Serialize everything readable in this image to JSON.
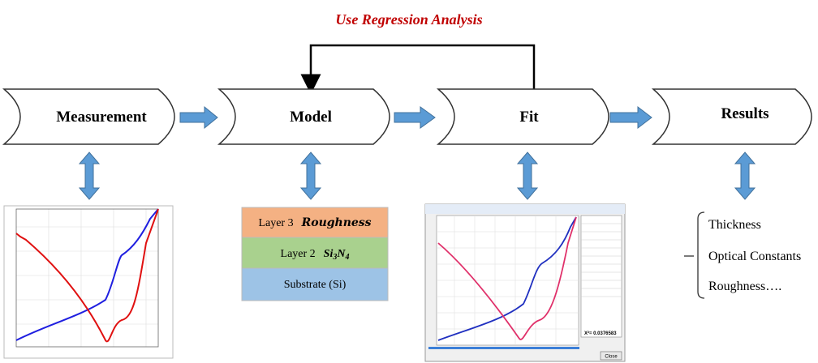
{
  "title": "Use Regression Analysis",
  "nodes": [
    {
      "label": "Measurement"
    },
    {
      "label": "Model"
    },
    {
      "label": "Fit"
    },
    {
      "label": "Results"
    }
  ],
  "layers": [
    {
      "label": "Layer 3",
      "material": "Roughness"
    },
    {
      "label": "Layer 2",
      "formula": [
        "Si",
        "3",
        "N",
        "4"
      ]
    },
    {
      "label": "Substrate (Si)"
    }
  ],
  "fit_window": {
    "chi_square": "X²= 0.0376583",
    "button": "Close"
  },
  "results": [
    "Thickness",
    "Optical Constants",
    "Roughness…."
  ]
}
